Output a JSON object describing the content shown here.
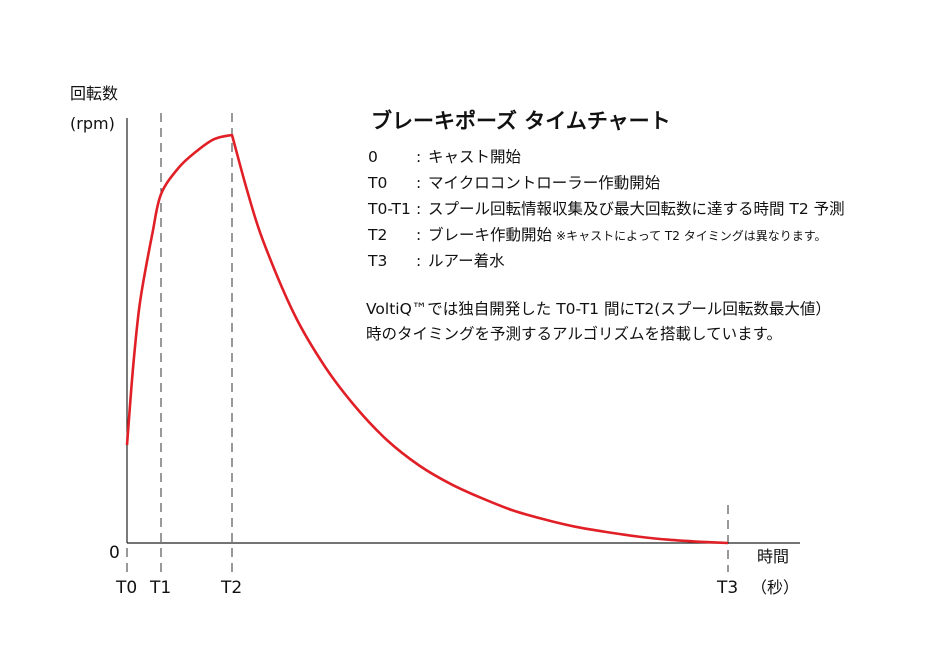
{
  "chart_data": {
    "type": "line",
    "title": "ブレーキポーズ タイムチャート",
    "ylabel": "回転数",
    "yunit": "(rpm)",
    "xlabel": "時間",
    "xunit": "（秒）",
    "origin_label": "0",
    "curve_color": "#e01f26",
    "axis_color": "#222222",
    "markers": [
      {
        "label": "T0",
        "t": 0
      },
      {
        "label": "T1",
        "t": 1
      },
      {
        "label": "T2",
        "t": 2
      },
      {
        "label": "T3",
        "t": 17.9
      }
    ],
    "series": [
      {
        "points": [
          {
            "t": 0.0,
            "rpm": 0.24
          },
          {
            "t": 0.1,
            "rpm": 0.35
          },
          {
            "t": 0.2,
            "rpm": 0.45
          },
          {
            "t": 0.35,
            "rpm": 0.57
          },
          {
            "t": 0.5,
            "rpm": 0.65
          },
          {
            "t": 0.75,
            "rpm": 0.76
          },
          {
            "t": 1.0,
            "rpm": 0.855
          },
          {
            "t": 1.25,
            "rpm": 0.92
          },
          {
            "t": 1.5,
            "rpm": 0.96
          },
          {
            "t": 1.75,
            "rpm": 0.99
          },
          {
            "t": 2.0,
            "rpm": 1.0
          },
          {
            "t": 2.5,
            "rpm": 0.86
          },
          {
            "t": 3.0,
            "rpm": 0.74
          },
          {
            "t": 4.0,
            "rpm": 0.56
          },
          {
            "t": 5.0,
            "rpm": 0.43
          },
          {
            "t": 6.0,
            "rpm": 0.33
          },
          {
            "t": 7.0,
            "rpm": 0.25
          },
          {
            "t": 8.0,
            "rpm": 0.19
          },
          {
            "t": 9.0,
            "rpm": 0.145
          },
          {
            "t": 10.0,
            "rpm": 0.11
          },
          {
            "t": 11.0,
            "rpm": 0.08
          },
          {
            "t": 12.0,
            "rpm": 0.058
          },
          {
            "t": 13.0,
            "rpm": 0.04
          },
          {
            "t": 14.0,
            "rpm": 0.027
          },
          {
            "t": 15.0,
            "rpm": 0.016
          },
          {
            "t": 16.0,
            "rpm": 0.008
          },
          {
            "t": 17.0,
            "rpm": 0.003
          },
          {
            "t": 17.9,
            "rpm": 0.0
          }
        ]
      }
    ],
    "legend": [
      {
        "key": "0",
        "text": "キャスト開始"
      },
      {
        "key": "T0",
        "text": "マイクロコントローラー作動開始"
      },
      {
        "key": "T0-T1",
        "text": "スプール回転情報収集及び最大回転数に達する時間 T2 予測"
      },
      {
        "key": "T2",
        "text": "ブレーキ作動開始",
        "note": "※キャストによって T2 タイミングは異なります。"
      },
      {
        "key": "T3",
        "text": "ルアー着水"
      }
    ],
    "description": [
      "VoltiQ™では独自開発した T0-T1 間にT2(スプール回転数最大値）",
      "時のタイミングを予測するアルゴリズムを搭載しています。"
    ]
  }
}
